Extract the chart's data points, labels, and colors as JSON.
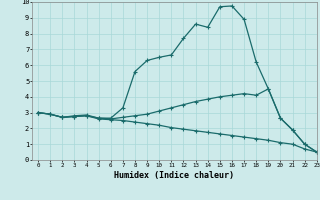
{
  "xlabel": "Humidex (Indice chaleur)",
  "xlim": [
    -0.5,
    23
  ],
  "ylim": [
    0,
    10
  ],
  "xticks": [
    0,
    1,
    2,
    3,
    4,
    5,
    6,
    7,
    8,
    9,
    10,
    11,
    12,
    13,
    14,
    15,
    16,
    17,
    18,
    19,
    20,
    21,
    22,
    23
  ],
  "yticks": [
    0,
    1,
    2,
    3,
    4,
    5,
    6,
    7,
    8,
    9,
    10
  ],
  "bg_color": "#cdeaea",
  "line_color": "#1a6b6b",
  "line1_x": [
    0,
    1,
    2,
    3,
    4,
    5,
    6,
    7,
    8,
    9,
    10,
    11,
    12,
    13,
    14,
    15,
    16,
    17,
    18,
    19,
    20,
    21,
    22,
    23
  ],
  "line1_y": [
    3.0,
    2.9,
    2.7,
    2.8,
    2.85,
    2.65,
    2.65,
    3.3,
    5.6,
    6.3,
    6.5,
    6.65,
    7.7,
    8.6,
    8.4,
    9.7,
    9.75,
    8.9,
    6.2,
    4.5,
    2.65,
    1.9,
    1.0,
    0.5
  ],
  "line2_x": [
    0,
    1,
    2,
    3,
    4,
    5,
    6,
    7,
    8,
    9,
    10,
    11,
    12,
    13,
    14,
    15,
    16,
    17,
    18,
    19,
    20,
    21,
    22,
    23
  ],
  "line2_y": [
    3.0,
    2.9,
    2.7,
    2.75,
    2.8,
    2.65,
    2.6,
    2.7,
    2.8,
    2.9,
    3.1,
    3.3,
    3.5,
    3.7,
    3.85,
    4.0,
    4.1,
    4.2,
    4.1,
    4.5,
    2.65,
    1.9,
    1.0,
    0.5
  ],
  "line3_x": [
    0,
    1,
    2,
    3,
    4,
    5,
    6,
    7,
    8,
    9,
    10,
    11,
    12,
    13,
    14,
    15,
    16,
    17,
    18,
    19,
    20,
    21,
    22,
    23
  ],
  "line3_y": [
    3.0,
    2.9,
    2.7,
    2.75,
    2.8,
    2.6,
    2.55,
    2.5,
    2.4,
    2.3,
    2.2,
    2.05,
    1.95,
    1.85,
    1.75,
    1.65,
    1.55,
    1.45,
    1.35,
    1.25,
    1.1,
    1.0,
    0.7,
    0.5
  ],
  "marker": "+",
  "markersize": 3,
  "linewidth": 0.9
}
